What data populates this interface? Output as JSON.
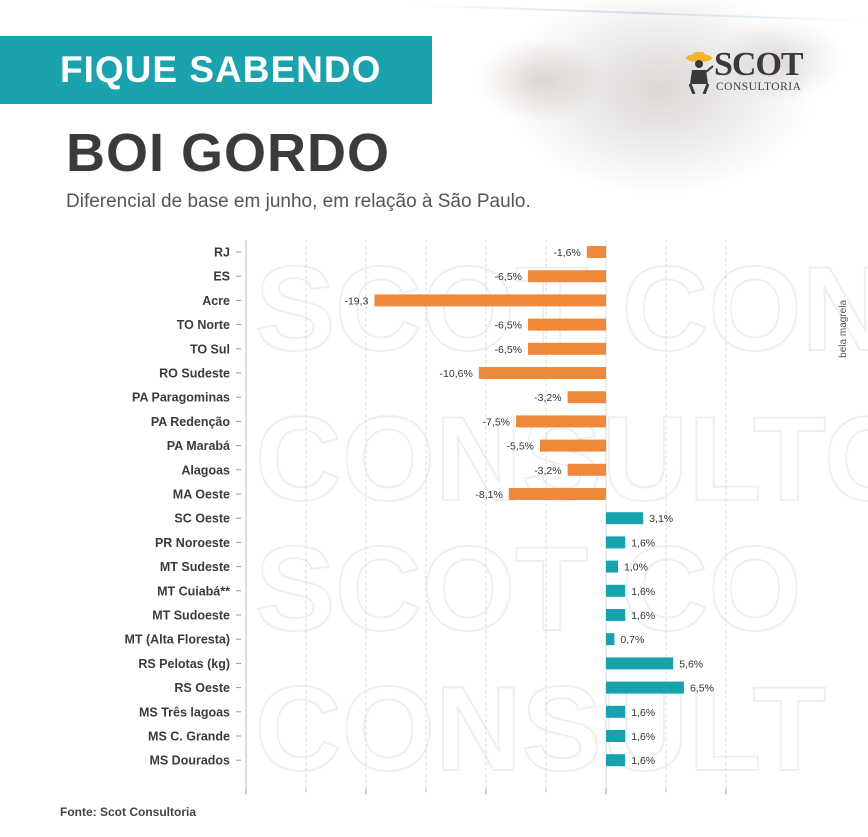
{
  "header": {
    "banner": "FIQUE SABENDO",
    "logo_name": "SCOT",
    "logo_sub": "CONSULTORIA",
    "title": "BOI GORDO",
    "subtitle": "Diferencial de base em junho, em relação à São Paulo."
  },
  "photo_credit": "bela magrela",
  "source": "Fonte: Scot Consultoria",
  "colors": {
    "banner": "#1aa3ad",
    "negative": "#f0883a",
    "positive": "#16a3ae",
    "text": "#3b3b3b"
  },
  "chart_data": {
    "type": "bar",
    "orientation": "horizontal",
    "title": "BOI GORDO",
    "subtitle": "Diferencial de base em junho, em relação à São Paulo.",
    "categories": [
      "RJ",
      "ES",
      "Acre",
      "TO Norte",
      "TO Sul",
      "RO Sudeste",
      "PA Paragominas",
      "PA Redenção",
      "PA Marabá",
      "Alagoas",
      "MA Oeste",
      "SC Oeste",
      "PR Noroeste",
      "MT Sudeste",
      "MT Cuiabá**",
      "MT Sudoeste",
      "MT (Alta Floresta)",
      "RS Pelotas (kg)",
      "RS Oeste",
      "MS Três lagoas",
      "MS C. Grande",
      "MS Dourados"
    ],
    "values": [
      -1.6,
      -6.5,
      -19.3,
      -6.5,
      -6.5,
      -10.6,
      -3.2,
      -7.5,
      -5.5,
      -3.2,
      -8.1,
      3.1,
      1.6,
      1.0,
      1.6,
      1.6,
      0.7,
      5.6,
      6.5,
      1.6,
      1.6,
      1.6
    ],
    "value_labels": [
      "-1,6%",
      "-6,5%",
      "-19,3",
      "-6,5%",
      "-6,5%",
      "-10,6%",
      "-3,2%",
      "-7,5%",
      "-5,5%",
      "-3,2%",
      "-8,1%",
      "3,1%",
      "1,6%",
      "1,0%",
      "1,6%",
      "1,6%",
      "0,7%",
      "5,6%",
      "6,5%",
      "1,6%",
      "1,6%",
      "1,6%"
    ],
    "xlim": [
      -30,
      10
    ],
    "x_ticks": [
      -30,
      -20,
      -10,
      0,
      10
    ],
    "x_tick_labels": [
      "-30%",
      "-20%",
      "-10%",
      "0",
      "10%"
    ],
    "grid": true,
    "xlabel": "",
    "ylabel": ""
  }
}
